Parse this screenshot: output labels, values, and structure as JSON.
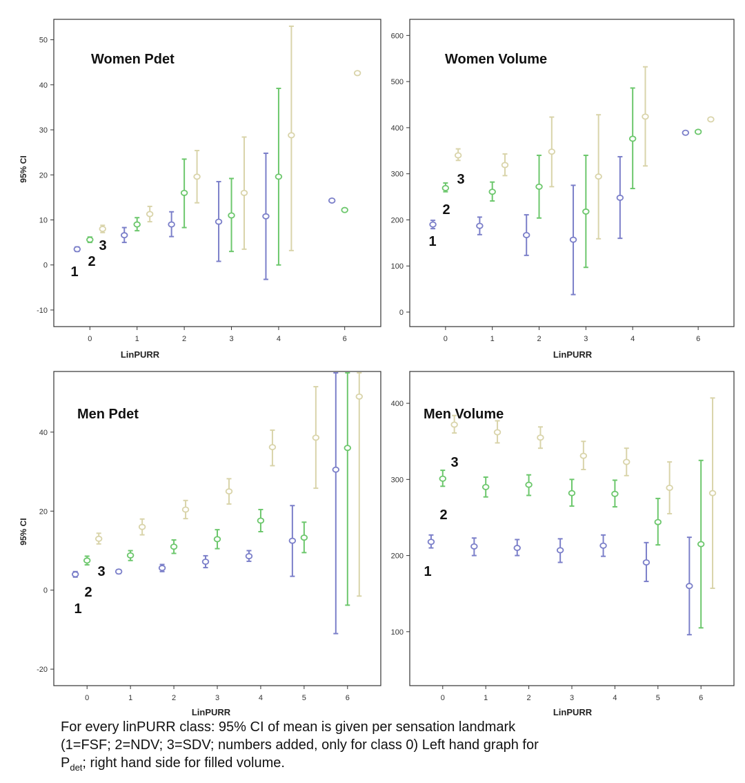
{
  "chart_data": [
    {
      "type": "errorbar",
      "title": "Women Pdet",
      "xlabel": "LinPURR",
      "ylabel": "95% CI",
      "categories": [
        "0",
        "1",
        "2",
        "3",
        "4",
        "6"
      ],
      "ylim": [
        -12,
        53
      ],
      "yticks": [
        -10,
        0,
        10,
        20,
        30,
        40,
        50
      ],
      "tick_decimals": 0,
      "series": [
        {
          "color": "#7b7fc9",
          "points": [
            {
              "x": "0",
              "mean": 3.5,
              "low": 3,
              "high": 4
            },
            {
              "x": "1",
              "mean": 6.6,
              "low": 5,
              "high": 8.3
            },
            {
              "x": "2",
              "mean": 9,
              "low": 6.3,
              "high": 11.8
            },
            {
              "x": "3",
              "mean": 9.6,
              "low": 0.8,
              "high": 18.5
            },
            {
              "x": "4",
              "mean": 10.8,
              "low": -3.2,
              "high": 24.8
            },
            {
              "x": "6",
              "mean": 14.3,
              "low": null,
              "high": null
            }
          ]
        },
        {
          "color": "#6cc76c",
          "points": [
            {
              "x": "0",
              "mean": 5.6,
              "low": 5,
              "high": 6.2
            },
            {
              "x": "1",
              "mean": 9,
              "low": 7.6,
              "high": 10.5
            },
            {
              "x": "2",
              "mean": 16,
              "low": 8.3,
              "high": 23.5
            },
            {
              "x": "3",
              "mean": 11,
              "low": 3,
              "high": 19.2
            },
            {
              "x": "4",
              "mean": 19.6,
              "low": 0,
              "high": 39.2
            },
            {
              "x": "6",
              "mean": 12.2,
              "low": null,
              "high": null
            }
          ]
        },
        {
          "color": "#d9d4aa",
          "points": [
            {
              "x": "0",
              "mean": 8,
              "low": 7.2,
              "high": 8.8
            },
            {
              "x": "1",
              "mean": 11.3,
              "low": 9.6,
              "high": 13
            },
            {
              "x": "2",
              "mean": 19.6,
              "low": 13.8,
              "high": 25.4
            },
            {
              "x": "3",
              "mean": 16,
              "low": 3.5,
              "high": 28.4
            },
            {
              "x": "4",
              "mean": 28.8,
              "low": 3.2,
              "high": 53
            },
            {
              "x": "6",
              "mean": 42.6,
              "low": null,
              "high": null
            }
          ]
        }
      ],
      "class_labels": [
        "1",
        "2",
        "3"
      ]
    },
    {
      "type": "errorbar",
      "title": "Women Volume",
      "xlabel": "LinPURR",
      "ylabel": "",
      "categories": [
        "0",
        "1",
        "2",
        "3",
        "4",
        "6"
      ],
      "ylim": [
        -15,
        620
      ],
      "yticks": [
        0,
        100,
        200,
        300,
        400,
        500,
        600
      ],
      "tick_decimals": 0,
      "series": [
        {
          "color": "#7b7fc9",
          "points": [
            {
              "x": "0",
              "mean": 190,
              "low": 181,
              "high": 199
            },
            {
              "x": "1",
              "mean": 187,
              "low": 168,
              "high": 206
            },
            {
              "x": "2",
              "mean": 167,
              "low": 123,
              "high": 211
            },
            {
              "x": "3",
              "mean": 157,
              "low": 38,
              "high": 275
            },
            {
              "x": "4",
              "mean": 248,
              "low": 160,
              "high": 337
            },
            {
              "x": "6",
              "mean": 389,
              "low": null,
              "high": null
            }
          ]
        },
        {
          "color": "#6cc76c",
          "points": [
            {
              "x": "0",
              "mean": 269,
              "low": 261,
              "high": 280
            },
            {
              "x": "1",
              "mean": 261,
              "low": 241,
              "high": 282
            },
            {
              "x": "2",
              "mean": 272,
              "low": 204,
              "high": 340
            },
            {
              "x": "3",
              "mean": 218,
              "low": 97,
              "high": 340
            },
            {
              "x": "4",
              "mean": 376,
              "low": 268,
              "high": 486
            },
            {
              "x": "6",
              "mean": 391,
              "low": null,
              "high": null
            }
          ]
        },
        {
          "color": "#d9d4aa",
          "points": [
            {
              "x": "0",
              "mean": 340,
              "low": 329,
              "high": 354
            },
            {
              "x": "1",
              "mean": 319,
              "low": 296,
              "high": 343
            },
            {
              "x": "2",
              "mean": 348,
              "low": 272,
              "high": 423
            },
            {
              "x": "3",
              "mean": 294,
              "low": 159,
              "high": 428
            },
            {
              "x": "4",
              "mean": 424,
              "low": 317,
              "high": 532
            },
            {
              "x": "6",
              "mean": 418,
              "low": null,
              "high": null
            }
          ]
        }
      ],
      "class_labels": [
        "1",
        "2",
        "3"
      ]
    },
    {
      "type": "errorbar",
      "title": "Men Pdet",
      "xlabel": "LinPURR",
      "ylabel": "95% CI",
      "categories": [
        "0",
        "1",
        "2",
        "3",
        "4",
        "5",
        "6"
      ],
      "ylim": [
        -24,
        55
      ],
      "yticks": [
        -20,
        0,
        20,
        40
      ],
      "tick_decimals": 0,
      "series": [
        {
          "color": "#7b7fc9",
          "points": [
            {
              "x": "0",
              "mean": 4,
              "low": 3.3,
              "high": 4.7
            },
            {
              "x": "1",
              "mean": 4.7,
              "low": 4.2,
              "high": 5.2
            },
            {
              "x": "2",
              "mean": 5.6,
              "low": 4.7,
              "high": 6.5
            },
            {
              "x": "3",
              "mean": 7.2,
              "low": 5.7,
              "high": 8.7
            },
            {
              "x": "4",
              "mean": 8.6,
              "low": 7.3,
              "high": 10
            },
            {
              "x": "5",
              "mean": 12.5,
              "low": 3.5,
              "high": 21.4
            },
            {
              "x": "6",
              "mean": 30.5,
              "low": -11,
              "high": 55
            }
          ]
        },
        {
          "color": "#6cc76c",
          "points": [
            {
              "x": "0",
              "mean": 7.5,
              "low": 6.4,
              "high": 8.6
            },
            {
              "x": "1",
              "mean": 8.8,
              "low": 7.5,
              "high": 10
            },
            {
              "x": "2",
              "mean": 11,
              "low": 9.3,
              "high": 12.7
            },
            {
              "x": "3",
              "mean": 12.9,
              "low": 10.5,
              "high": 15.3
            },
            {
              "x": "4",
              "mean": 17.6,
              "low": 14.8,
              "high": 20.4
            },
            {
              "x": "5",
              "mean": 13.3,
              "low": 9.5,
              "high": 17.2
            },
            {
              "x": "6",
              "mean": 36,
              "low": -3.8,
              "high": 55
            }
          ]
        },
        {
          "color": "#d9d4aa",
          "points": [
            {
              "x": "0",
              "mean": 13,
              "low": 11.7,
              "high": 14.4
            },
            {
              "x": "1",
              "mean": 16,
              "low": 14,
              "high": 18
            },
            {
              "x": "2",
              "mean": 20.4,
              "low": 18.1,
              "high": 22.7
            },
            {
              "x": "3",
              "mean": 25,
              "low": 21.8,
              "high": 28.2
            },
            {
              "x": "4",
              "mean": 36.2,
              "low": 31.5,
              "high": 40.5
            },
            {
              "x": "5",
              "mean": 38.6,
              "low": 25.8,
              "high": 51.5
            },
            {
              "x": "6",
              "mean": 49,
              "low": -1.5,
              "high": 55
            }
          ]
        }
      ],
      "class_labels": [
        "1",
        "2",
        "3"
      ]
    },
    {
      "type": "errorbar",
      "title": "Men Volume",
      "xlabel": "LinPURR",
      "ylabel": "",
      "categories": [
        "0",
        "1",
        "2",
        "3",
        "4",
        "5",
        "6"
      ],
      "ylim": [
        30,
        440
      ],
      "yticks": [
        100,
        200,
        300,
        400
      ],
      "tick_decimals": 0,
      "series": [
        {
          "color": "#7b7fc9",
          "points": [
            {
              "x": "0",
              "mean": 218,
              "low": 210,
              "high": 227
            },
            {
              "x": "1",
              "mean": 212,
              "low": 200,
              "high": 223
            },
            {
              "x": "2",
              "mean": 210,
              "low": 200,
              "high": 221
            },
            {
              "x": "3",
              "mean": 207,
              "low": 191,
              "high": 222
            },
            {
              "x": "4",
              "mean": 213,
              "low": 199,
              "high": 227
            },
            {
              "x": "5",
              "mean": 191,
              "low": 166,
              "high": 217
            },
            {
              "x": "6",
              "mean": 160,
              "low": 96,
              "high": 224
            }
          ]
        },
        {
          "color": "#6cc76c",
          "points": [
            {
              "x": "0",
              "mean": 301,
              "low": 291,
              "high": 312
            },
            {
              "x": "1",
              "mean": 290,
              "low": 277,
              "high": 303
            },
            {
              "x": "2",
              "mean": 293,
              "low": 279,
              "high": 306
            },
            {
              "x": "3",
              "mean": 282,
              "low": 265,
              "high": 300
            },
            {
              "x": "4",
              "mean": 281,
              "low": 264,
              "high": 299
            },
            {
              "x": "5",
              "mean": 244,
              "low": 214,
              "high": 275
            },
            {
              "x": "6",
              "mean": 215,
              "low": 105,
              "high": 325
            }
          ]
        },
        {
          "color": "#d9d4aa",
          "points": [
            {
              "x": "0",
              "mean": 372,
              "low": 361,
              "high": 384
            },
            {
              "x": "1",
              "mean": 362,
              "low": 348,
              "high": 377
            },
            {
              "x": "2",
              "mean": 355,
              "low": 341,
              "high": 369
            },
            {
              "x": "3",
              "mean": 331,
              "low": 313,
              "high": 350
            },
            {
              "x": "4",
              "mean": 323,
              "low": 305,
              "high": 341
            },
            {
              "x": "5",
              "mean": 289,
              "low": 255,
              "high": 323
            },
            {
              "x": "6",
              "mean": 282,
              "low": 157,
              "high": 407
            }
          ]
        }
      ],
      "class_labels": [
        "1",
        "2",
        "3"
      ]
    }
  ],
  "caption": {
    "line1": "For every linPURR class: 95% CI of mean is given per sensation landmark",
    "line2": "(1=FSF; 2=NDV; 3=SDV; numbers added, only for class 0) Left hand graph for",
    "line3_main": "P",
    "line3_sub": "det",
    "line3_rest": "; right hand side for filled volume."
  }
}
